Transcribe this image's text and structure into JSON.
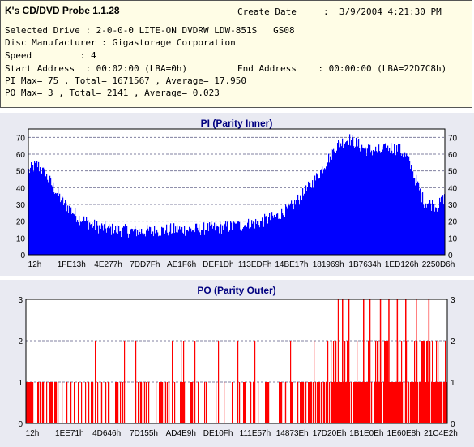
{
  "header": {
    "app_title": "K's CD/DVD Probe 1.1.28",
    "create_date_label": "Create Date",
    "create_date": ":  3/9/2004 4:21:30 PM",
    "drive_line": "Selected Drive : 2-0-0-0 LITE-ON DVDRW LDW-851S   GS08",
    "manufacturer_line": "Disc Manufacturer : Gigastorage Corporation",
    "speed_line": "Speed         : 4",
    "start_address_line": "Start Address  : 00:02:00 (LBA=0h)",
    "end_address_line": "End Address    : 00:00:00 (LBA=22D7C8h)",
    "pi_summary": "PI Max= 75 , Total= 1671567 , Average= 17.950",
    "po_summary": "PO Max= 3 , Total= 2141 , Average= 0.023"
  },
  "colors": {
    "bar": "#0000ff",
    "po_bar": "#ff0000",
    "panel": "#e9eaf2",
    "plot_bg": "#ffffff",
    "grid": "#8080a0"
  },
  "chart_data": [
    {
      "type": "bar",
      "title": "PI (Parity Inner)",
      "xlabel": "",
      "ylabel": "",
      "ylim": [
        0,
        75
      ],
      "y_ticks": [
        0,
        10,
        20,
        30,
        40,
        50,
        60,
        70
      ],
      "x_tick_labels": [
        "12h",
        "1FE13h",
        "4E277h",
        "7DD7Fh",
        "AE1F6h",
        "DEF1Dh",
        "113EDFh",
        "14BE17h",
        "181969h",
        "1B7634h",
        "1ED126h",
        "2250D6h"
      ],
      "grid": true,
      "envelope": {
        "x": [
          0,
          0.02,
          0.05,
          0.08,
          0.12,
          0.16,
          0.2,
          0.25,
          0.3,
          0.35,
          0.4,
          0.45,
          0.5,
          0.55,
          0.6,
          0.63,
          0.66,
          0.69,
          0.72,
          0.745,
          0.77,
          0.79,
          0.81,
          0.83,
          0.85,
          0.87,
          0.89,
          0.91,
          0.93,
          0.95,
          0.97,
          0.985,
          1.0
        ],
        "y": [
          50,
          54,
          44,
          32,
          22,
          17,
          15,
          14,
          14,
          15,
          15,
          16,
          17,
          19,
          23,
          28,
          36,
          45,
          57,
          66,
          69,
          66,
          63,
          62,
          62,
          64,
          63,
          58,
          45,
          32,
          30,
          29,
          34
        ]
      },
      "noise": 4,
      "max": 75
    },
    {
      "type": "bar",
      "title": "PO (Parity Outer)",
      "xlabel": "",
      "ylabel": "",
      "ylim": [
        0,
        3
      ],
      "y_ticks": [
        0,
        1,
        2,
        3
      ],
      "x_tick_labels": [
        "12h",
        "1EE71h",
        "4D646h",
        "7D155h",
        "AD4E9h",
        "DE10Fh",
        "111E57h",
        "14873Eh",
        "17D20Eh",
        "1B1E0Eh",
        "1E60E8h",
        "21C4E2h"
      ],
      "grid": true,
      "density": {
        "x": [
          0,
          0.15,
          0.3,
          0.45,
          0.55,
          0.62,
          0.66,
          0.72,
          0.78,
          0.85,
          0.92,
          1.0
        ],
        "y": [
          0.55,
          0.45,
          0.25,
          0.2,
          0.25,
          0.35,
          0.45,
          0.85,
          0.9,
          0.8,
          0.9,
          0.85
        ]
      },
      "level2_prob": 0.22,
      "level3_positions": [
        0.74,
        0.75,
        0.765,
        0.8,
        0.815,
        0.84,
        0.86,
        0.88,
        0.9,
        0.925,
        0.955
      ]
    }
  ]
}
